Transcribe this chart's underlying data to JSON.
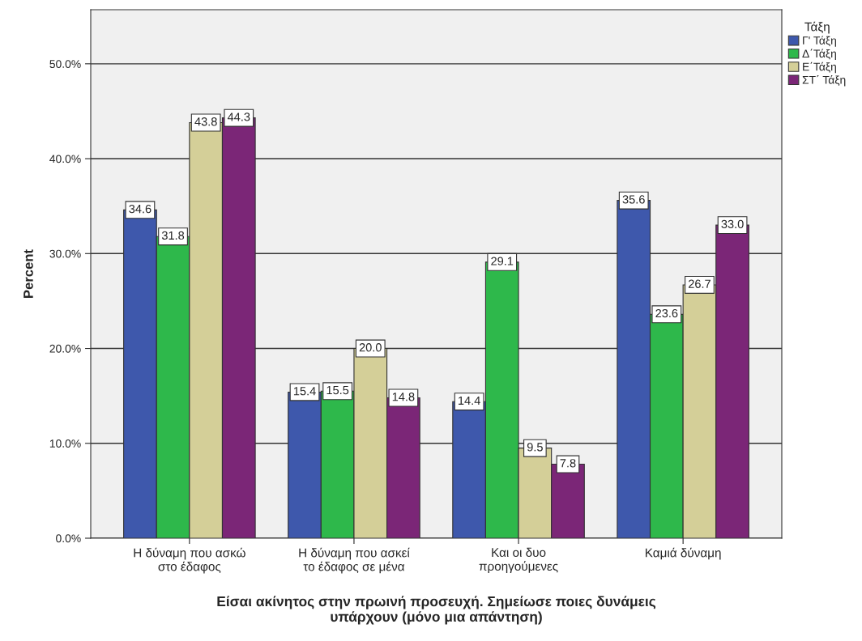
{
  "chart_data": {
    "type": "bar",
    "xlabel": "Είσαι ακίνητος στην πρωινή προσευχή. Σημείωσε ποιες δυνάμεις\nυπάρχουν (μόνο μια απάντηση)",
    "ylabel": "Percent",
    "legend_title": "Τάξη",
    "categories": [
      "Η δύναμη που ασκώ\nστο έδαφος",
      "Η δύναμη που ασκεί\nτο έδαφος σε μένα",
      "Και οι δυο\nπροηγούμενες",
      "Καμιά δύναμη"
    ],
    "series": [
      {
        "name": "Γ' Τάξη",
        "color": "#3e58ac",
        "values": [
          34.6,
          15.4,
          14.4,
          35.6
        ],
        "value_labels": [
          "34.6",
          "15.4",
          "14.4",
          "35.6"
        ]
      },
      {
        "name": "Δ΄Τάξη",
        "color": "#2eb84b",
        "values": [
          31.8,
          15.5,
          29.1,
          23.6
        ],
        "value_labels": [
          "31.8",
          "15.5",
          "29.1",
          "23.6"
        ]
      },
      {
        "name": "Ε΄Τάξη",
        "color": "#d4cf98",
        "values": [
          43.8,
          20.0,
          9.5,
          26.7
        ],
        "value_labels": [
          "43.8",
          "20.0",
          "9.5",
          "26.7"
        ]
      },
      {
        "name": "ΣΤ΄ Τάξη",
        "color": "#7b2677",
        "values": [
          44.3,
          14.8,
          7.8,
          33.0
        ],
        "value_labels": [
          "44.3",
          "14.8",
          "7.8",
          "33.0"
        ]
      }
    ],
    "ylim": [
      0,
      55.7
    ],
    "yticks": [
      {
        "value": 0,
        "label": "0.0%"
      },
      {
        "value": 10,
        "label": "10.0%"
      },
      {
        "value": 20,
        "label": "20.0%"
      },
      {
        "value": 30,
        "label": "30.0%"
      },
      {
        "value": 40,
        "label": "40.0%"
      },
      {
        "value": 50,
        "label": "50.0%"
      }
    ],
    "grid": "y",
    "legend": "top right"
  }
}
